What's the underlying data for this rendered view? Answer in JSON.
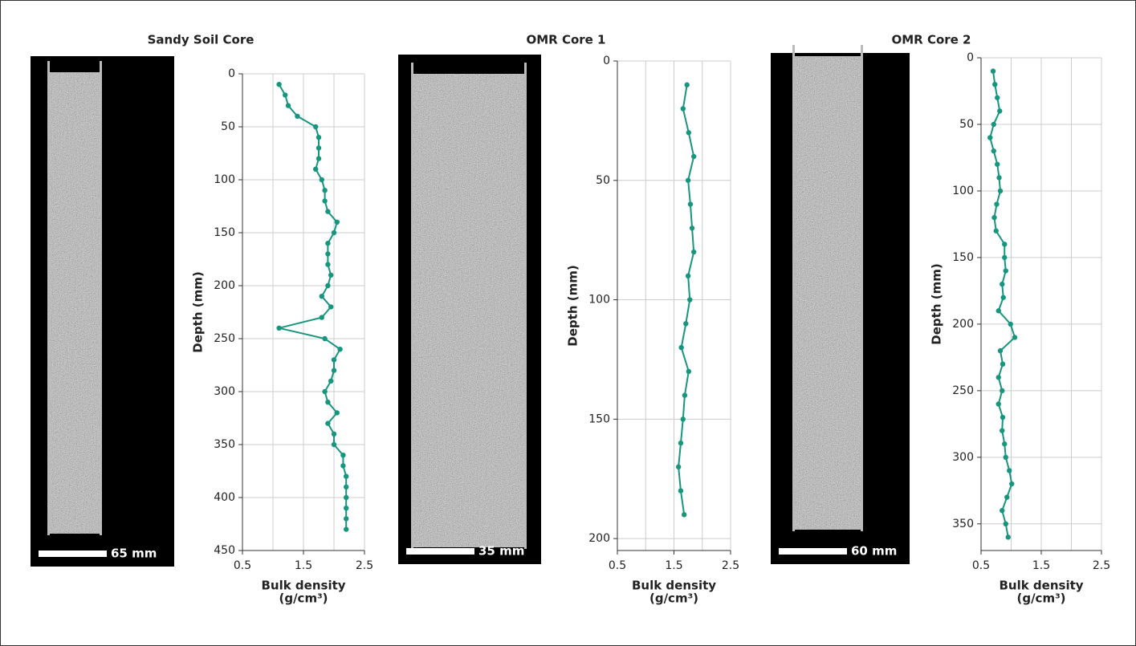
{
  "chart_data": [
    {
      "type": "line",
      "title": "Sandy Soil Core",
      "scale_bar": "65 mm",
      "xlabel": [
        "Bulk density",
        "(g/cm³)"
      ],
      "ylabel": "Depth (mm)",
      "color": "#16967e",
      "xlim": [
        0.5,
        2.5
      ],
      "xticks": [
        0.5,
        1.5,
        2.5
      ],
      "xminor": [
        1,
        2
      ],
      "ylim": [
        0,
        450
      ],
      "yticks": [
        0,
        50,
        100,
        150,
        200,
        250,
        300,
        350,
        400,
        450
      ],
      "y_inverted": true,
      "grid": true,
      "y": [
        10,
        20,
        30,
        40,
        50,
        60,
        70,
        80,
        90,
        100,
        110,
        120,
        130,
        140,
        150,
        160,
        170,
        180,
        190,
        200,
        210,
        220,
        230,
        240,
        250,
        260,
        270,
        280,
        290,
        300,
        310,
        320,
        330,
        340,
        350,
        360,
        370,
        380,
        390,
        400,
        410,
        420,
        430
      ],
      "values": [
        1.1,
        1.2,
        1.25,
        1.4,
        1.7,
        1.75,
        1.75,
        1.75,
        1.7,
        1.8,
        1.85,
        1.85,
        1.9,
        2.05,
        2.0,
        1.9,
        1.9,
        1.9,
        1.95,
        1.9,
        1.8,
        1.95,
        1.8,
        1.1,
        1.85,
        2.1,
        2.0,
        2.0,
        1.95,
        1.85,
        1.9,
        2.05,
        1.9,
        2.0,
        2.0,
        2.15,
        2.15,
        2.2,
        2.2,
        2.2,
        2.2,
        2.2,
        2.2
      ]
    },
    {
      "type": "line",
      "title": "OMR Core 1",
      "scale_bar": "35 mm",
      "xlabel": [
        "Bulk density",
        "(g/cm³)"
      ],
      "ylabel": "Depth (mm)",
      "color": "#16967e",
      "xlim": [
        0.5,
        2.5
      ],
      "xticks": [
        0.5,
        1.5,
        2.5
      ],
      "xminor": [
        1,
        2
      ],
      "ylim": [
        0,
        205
      ],
      "yticks": [
        0,
        50,
        100,
        150,
        200
      ],
      "y_inverted": true,
      "grid": true,
      "y": [
        10,
        20,
        30,
        40,
        50,
        60,
        70,
        80,
        90,
        100,
        110,
        120,
        130,
        140,
        150,
        160,
        170,
        180,
        190
      ],
      "values": [
        1.73,
        1.66,
        1.76,
        1.85,
        1.75,
        1.79,
        1.82,
        1.85,
        1.75,
        1.78,
        1.71,
        1.63,
        1.76,
        1.69,
        1.66,
        1.62,
        1.58,
        1.62,
        1.68
      ]
    },
    {
      "type": "line",
      "title": "OMR Core 2",
      "scale_bar": "60 mm",
      "xlabel": [
        "Bulk density",
        "(g/cm³)"
      ],
      "ylabel": "Depth (mm)",
      "color": "#16967e",
      "xlim": [
        0.5,
        2.5
      ],
      "xticks": [
        0.5,
        1.5,
        2.5
      ],
      "xminor": [
        1,
        2
      ],
      "ylim": [
        0,
        370
      ],
      "yticks": [
        0,
        50,
        100,
        150,
        200,
        250,
        300,
        350
      ],
      "y_inverted": true,
      "grid": true,
      "y": [
        10,
        20,
        30,
        40,
        50,
        60,
        70,
        80,
        90,
        100,
        110,
        120,
        130,
        140,
        150,
        160,
        170,
        180,
        190,
        200,
        210,
        220,
        230,
        240,
        250,
        260,
        270,
        280,
        290,
        300,
        310,
        320,
        330,
        340,
        350,
        360
      ],
      "values": [
        0.7,
        0.73,
        0.77,
        0.81,
        0.71,
        0.65,
        0.71,
        0.77,
        0.8,
        0.82,
        0.76,
        0.72,
        0.75,
        0.89,
        0.89,
        0.91,
        0.85,
        0.87,
        0.79,
        0.99,
        1.06,
        0.82,
        0.86,
        0.79,
        0.85,
        0.79,
        0.86,
        0.85,
        0.89,
        0.91,
        0.97,
        1.01,
        0.93,
        0.85,
        0.91,
        0.95
      ]
    }
  ]
}
